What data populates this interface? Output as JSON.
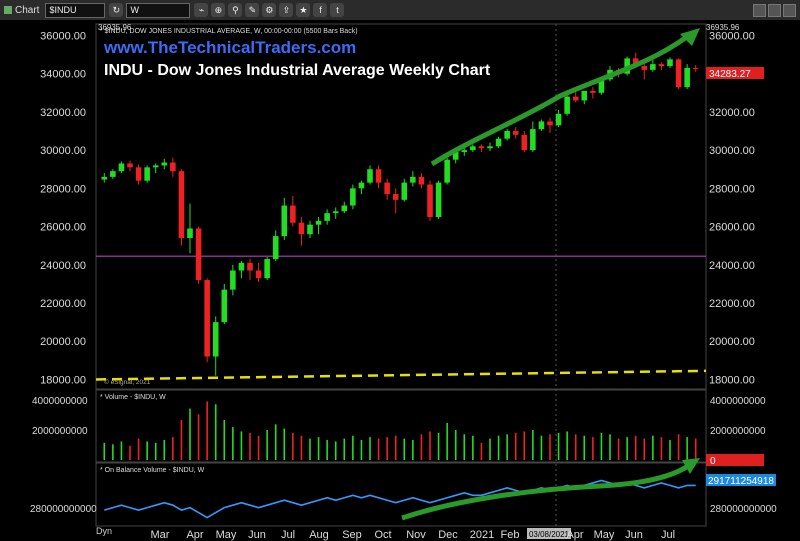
{
  "toolbar": {
    "title": "Chart",
    "symbol": "$INDU",
    "interval": "W",
    "icons": [
      "refresh-icon",
      "link-icon",
      "crosshair-icon",
      "zoom-icon",
      "draw-icon",
      "settings-icon",
      "share-icon",
      "bookmark-icon",
      "facebook-icon",
      "twitter-icon"
    ]
  },
  "colors": {
    "up": "#22dd22",
    "down": "#ee2222",
    "purple_line": "#b040c8",
    "yellow_line": "#e8e000",
    "obv_line": "#3399ff",
    "arrow": "#2a9a2a",
    "title_blue": "#3b6cf5"
  },
  "price_panel": {
    "header": "* $INDU, DOW JONES INDUSTRIAL AVERAGE, W, 00:00-00:00 (5500 Bars Back)",
    "site": "www.TheTechnicalTraders.com",
    "title": "INDU - Dow Jones Industrial Average Weekly Chart",
    "top_label": "36935.96",
    "last_price": "34283.27",
    "esignal": "© eSignal, 2021",
    "purple_level": 24450,
    "yellow_start": 18000,
    "yellow_end": 18450
  },
  "volume_panel": {
    "header": "* Volume - $INDU, W",
    "ticks": [
      "4000000000",
      "2000000000",
      "0"
    ]
  },
  "obv_panel": {
    "header": "* On Balance Volume - $INDU, W",
    "tick": "280000000000",
    "zero_label": "0",
    "last_label": "291711254918"
  },
  "x_axis": {
    "labels": [
      "Mar",
      "Apr",
      "May",
      "Jun",
      "Jul",
      "Aug",
      "Sep",
      "Oct",
      "Nov",
      "Dec",
      "2021",
      "Feb",
      "03/08/2021",
      "Apr",
      "May",
      "Jun",
      "Jul"
    ],
    "dyn": "Dyn"
  },
  "chart_data": {
    "type": "candlestick",
    "ylim": [
      17500,
      36600
    ],
    "yticks": [
      18000,
      20000,
      22000,
      24000,
      26000,
      28000,
      30000,
      32000,
      34000,
      36000
    ],
    "candles": [
      [
        28460,
        28800,
        28300,
        28600
      ],
      [
        28600,
        29000,
        28500,
        28900
      ],
      [
        28900,
        29400,
        28800,
        29300
      ],
      [
        29300,
        29450,
        28900,
        29100
      ],
      [
        29100,
        29250,
        28200,
        28400
      ],
      [
        28400,
        29200,
        28300,
        29100
      ],
      [
        29100,
        29300,
        28800,
        29200
      ],
      [
        29200,
        29550,
        29000,
        29350
      ],
      [
        29350,
        29600,
        28600,
        28900
      ],
      [
        28900,
        29000,
        25000,
        25400
      ],
      [
        25400,
        27200,
        24600,
        25900
      ],
      [
        25900,
        26000,
        23000,
        23200
      ],
      [
        23200,
        23300,
        18900,
        19200
      ],
      [
        19200,
        21300,
        18200,
        21000
      ],
      [
        21000,
        23000,
        20900,
        22700
      ],
      [
        22700,
        24000,
        22400,
        23700
      ],
      [
        23700,
        24200,
        23300,
        24100
      ],
      [
        24100,
        24300,
        23200,
        23700
      ],
      [
        23700,
        24100,
        23100,
        23300
      ],
      [
        23300,
        24400,
        23200,
        24300
      ],
      [
        24300,
        25800,
        24200,
        25500
      ],
      [
        25500,
        27500,
        25300,
        27100
      ],
      [
        27100,
        27600,
        26000,
        26200
      ],
      [
        26200,
        26500,
        25000,
        25600
      ],
      [
        25600,
        26300,
        25400,
        26100
      ],
      [
        26100,
        26500,
        25600,
        26300
      ],
      [
        26300,
        26900,
        26100,
        26700
      ],
      [
        26700,
        27000,
        26400,
        26800
      ],
      [
        26800,
        27300,
        26700,
        27100
      ],
      [
        27100,
        28200,
        26900,
        28000
      ],
      [
        28000,
        28400,
        27700,
        28300
      ],
      [
        28300,
        29200,
        28200,
        29000
      ],
      [
        29000,
        29200,
        28000,
        28300
      ],
      [
        28300,
        28500,
        27400,
        27700
      ],
      [
        27700,
        28000,
        26700,
        27400
      ],
      [
        27400,
        28500,
        27300,
        28300
      ],
      [
        28300,
        28900,
        28100,
        28600
      ],
      [
        28600,
        28800,
        28000,
        28200
      ],
      [
        28200,
        28400,
        26300,
        26500
      ],
      [
        26500,
        28400,
        26400,
        28300
      ],
      [
        28300,
        29600,
        28200,
        29500
      ],
      [
        29500,
        30100,
        29300,
        29900
      ],
      [
        29900,
        30200,
        29700,
        30000
      ],
      [
        30000,
        30300,
        29900,
        30200
      ],
      [
        30200,
        30300,
        29900,
        30100
      ],
      [
        30100,
        30400,
        29950,
        30200
      ],
      [
        30200,
        30700,
        30100,
        30600
      ],
      [
        30600,
        31100,
        30500,
        31000
      ],
      [
        31000,
        31200,
        30600,
        30800
      ],
      [
        30800,
        31000,
        29900,
        30000
      ],
      [
        30000,
        31500,
        29900,
        31100
      ],
      [
        31100,
        31600,
        31000,
        31500
      ],
      [
        31500,
        31700,
        30900,
        31300
      ],
      [
        31300,
        32100,
        31200,
        31900
      ],
      [
        31900,
        32900,
        31800,
        32800
      ],
      [
        32800,
        33200,
        32500,
        32600
      ],
      [
        32600,
        33100,
        32400,
        33100
      ],
      [
        33100,
        33300,
        32700,
        33000
      ],
      [
        33000,
        33800,
        32900,
        33700
      ],
      [
        33700,
        34400,
        33600,
        34200
      ],
      [
        34200,
        34300,
        33800,
        34000
      ],
      [
        34000,
        34900,
        33900,
        34800
      ],
      [
        34800,
        35100,
        34300,
        34400
      ],
      [
        34400,
        34500,
        33700,
        34200
      ],
      [
        34200,
        34900,
        34100,
        34500
      ],
      [
        34500,
        34600,
        34200,
        34400
      ],
      [
        34400,
        34850,
        34300,
        34750
      ],
      [
        34750,
        34800,
        33200,
        33300
      ],
      [
        33300,
        34500,
        33200,
        34300
      ],
      [
        34300,
        34450,
        34100,
        34283
      ]
    ],
    "volume": [
      1200,
      1100,
      1300,
      1000,
      1500,
      1300,
      1200,
      1400,
      1600,
      2800,
      3600,
      3200,
      4100,
      3900,
      2800,
      2300,
      2000,
      1900,
      1700,
      2100,
      2500,
      2200,
      1900,
      1700,
      1500,
      1600,
      1400,
      1300,
      1500,
      1700,
      1400,
      1600,
      1500,
      1600,
      1700,
      1500,
      1400,
      1800,
      2000,
      1900,
      2600,
      2100,
      1800,
      1700,
      1200,
      1500,
      1700,
      1800,
      1900,
      2000,
      2100,
      1700,
      1800,
      1900,
      2000,
      1800,
      1700,
      1600,
      1900,
      1800,
      1500,
      1600,
      1700,
      1500,
      1700,
      1600,
      1400,
      1800,
      1600,
      1500
    ],
    "obv": [
      282,
      283,
      284,
      283,
      282,
      283,
      284,
      285,
      284,
      282,
      283,
      281,
      279,
      281,
      283,
      284,
      285,
      284,
      283,
      284,
      285,
      286,
      285,
      284,
      285,
      286,
      287,
      286,
      287,
      288,
      287,
      288,
      287,
      286,
      285,
      286,
      287,
      286,
      285,
      286,
      287,
      288,
      289,
      288,
      288,
      289,
      290,
      291,
      290,
      289,
      290,
      291,
      290,
      291,
      292,
      291,
      292,
      293,
      294,
      293,
      292,
      293,
      292,
      291,
      292,
      293,
      292,
      291,
      292,
      292
    ]
  }
}
